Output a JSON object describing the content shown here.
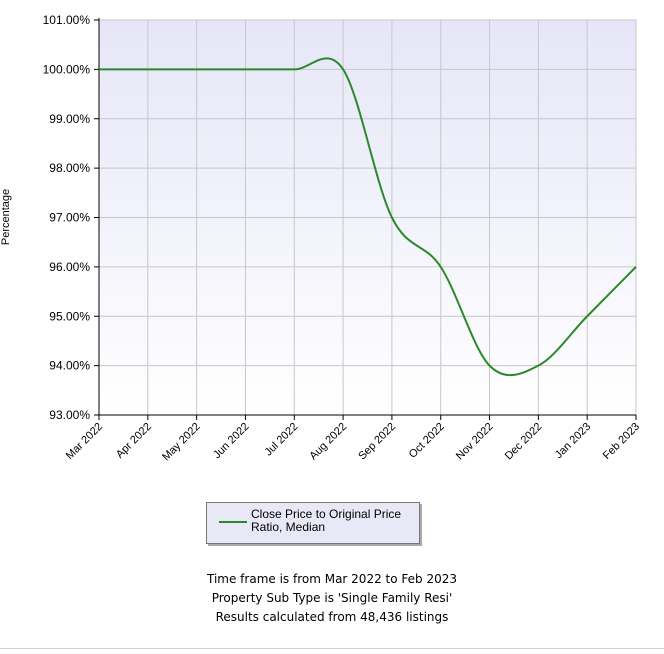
{
  "chart_data": {
    "type": "line",
    "ylabel": "Percentage",
    "ylim": [
      93,
      101
    ],
    "yticks": [
      "101.00%",
      "100.00%",
      "99.00%",
      "98.00%",
      "97.00%",
      "96.00%",
      "95.00%",
      "94.00%",
      "93.00%"
    ],
    "categories": [
      "Mar 2022",
      "Apr 2022",
      "May 2022",
      "Jun 2022",
      "Jul 2022",
      "Aug 2022",
      "Sep 2022",
      "Oct 2022",
      "Nov 2022",
      "Dec 2022",
      "Jan 2023",
      "Feb 2023"
    ],
    "series": [
      {
        "name": "Close Price to Original Price Ratio, Median",
        "color": "#2a8a2a",
        "values": [
          100.0,
          100.0,
          100.0,
          100.0,
          100.0,
          100.0,
          97.0,
          96.0,
          94.0,
          94.0,
          95.0,
          96.0
        ]
      }
    ],
    "grid": true,
    "legend": "bottom-center",
    "plot_background": "#e8e8f6"
  },
  "legend": {
    "label": "Close Price to Original Price Ratio, Median"
  },
  "footer": {
    "line1": "Time frame is from Mar 2022 to Feb 2023",
    "line2": "Property Sub Type is 'Single Family Resi'",
    "line3": "Results calculated from 48,436 listings"
  }
}
